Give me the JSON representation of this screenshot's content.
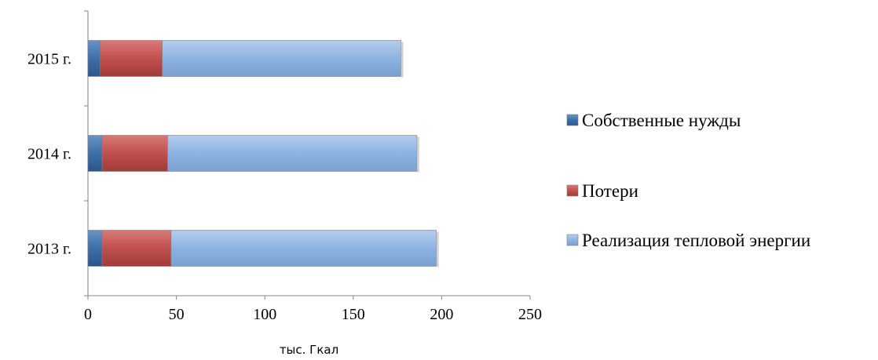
{
  "chart_data": {
    "type": "bar",
    "orientation": "horizontal",
    "stacked": true,
    "categories": [
      "2013 г.",
      "2014 г.",
      "2015 г."
    ],
    "series": [
      {
        "name": "Собственные нужды",
        "values": [
          8,
          8,
          7
        ],
        "color": "#3D6FA8"
      },
      {
        "name": "Потери",
        "values": [
          39,
          37,
          35
        ],
        "color": "#C0504D"
      },
      {
        "name": "Реализация тепловой энергии",
        "values": [
          150,
          141,
          135
        ],
        "color": "#8DB3E2"
      }
    ],
    "title": "",
    "xlabel": "тыс. Гкал",
    "ylabel": "",
    "xlim": [
      0,
      250
    ],
    "x_ticks": [
      0,
      50,
      100,
      150,
      200,
      250
    ],
    "grid": false,
    "legend_position": "right"
  }
}
